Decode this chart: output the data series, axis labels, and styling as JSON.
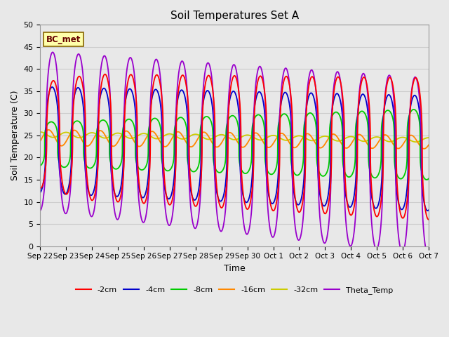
{
  "title": "Soil Temperatures Set A",
  "xlabel": "Time",
  "ylabel": "Soil Temperature (C)",
  "ylim": [
    0,
    50
  ],
  "yticks": [
    0,
    5,
    10,
    15,
    20,
    25,
    30,
    35,
    40,
    45,
    50
  ],
  "xtick_labels": [
    "Sep 22",
    "Sep 23",
    "Sep 24",
    "Sep 25",
    "Sep 26",
    "Sep 27",
    "Sep 28",
    "Sep 29",
    "Sep 30",
    "Oct 1",
    "Oct 2",
    "Oct 3",
    "Oct 4",
    "Oct 5",
    "Oct 6",
    "Oct 7"
  ],
  "bc_met_label": "BC_met",
  "legend_entries": [
    "-2cm",
    "-4cm",
    "-8cm",
    "-16cm",
    "-32cm",
    "Theta_Temp"
  ],
  "line_colors": [
    "#ff0000",
    "#0000cc",
    "#00cc00",
    "#ff8800",
    "#cccc00",
    "#9900cc"
  ],
  "fig_bg_color": "#e8e8e8",
  "plot_bg_color": "#e8e8e8",
  "grid_color": "#cccccc",
  "days": 15,
  "n_points": 7200
}
